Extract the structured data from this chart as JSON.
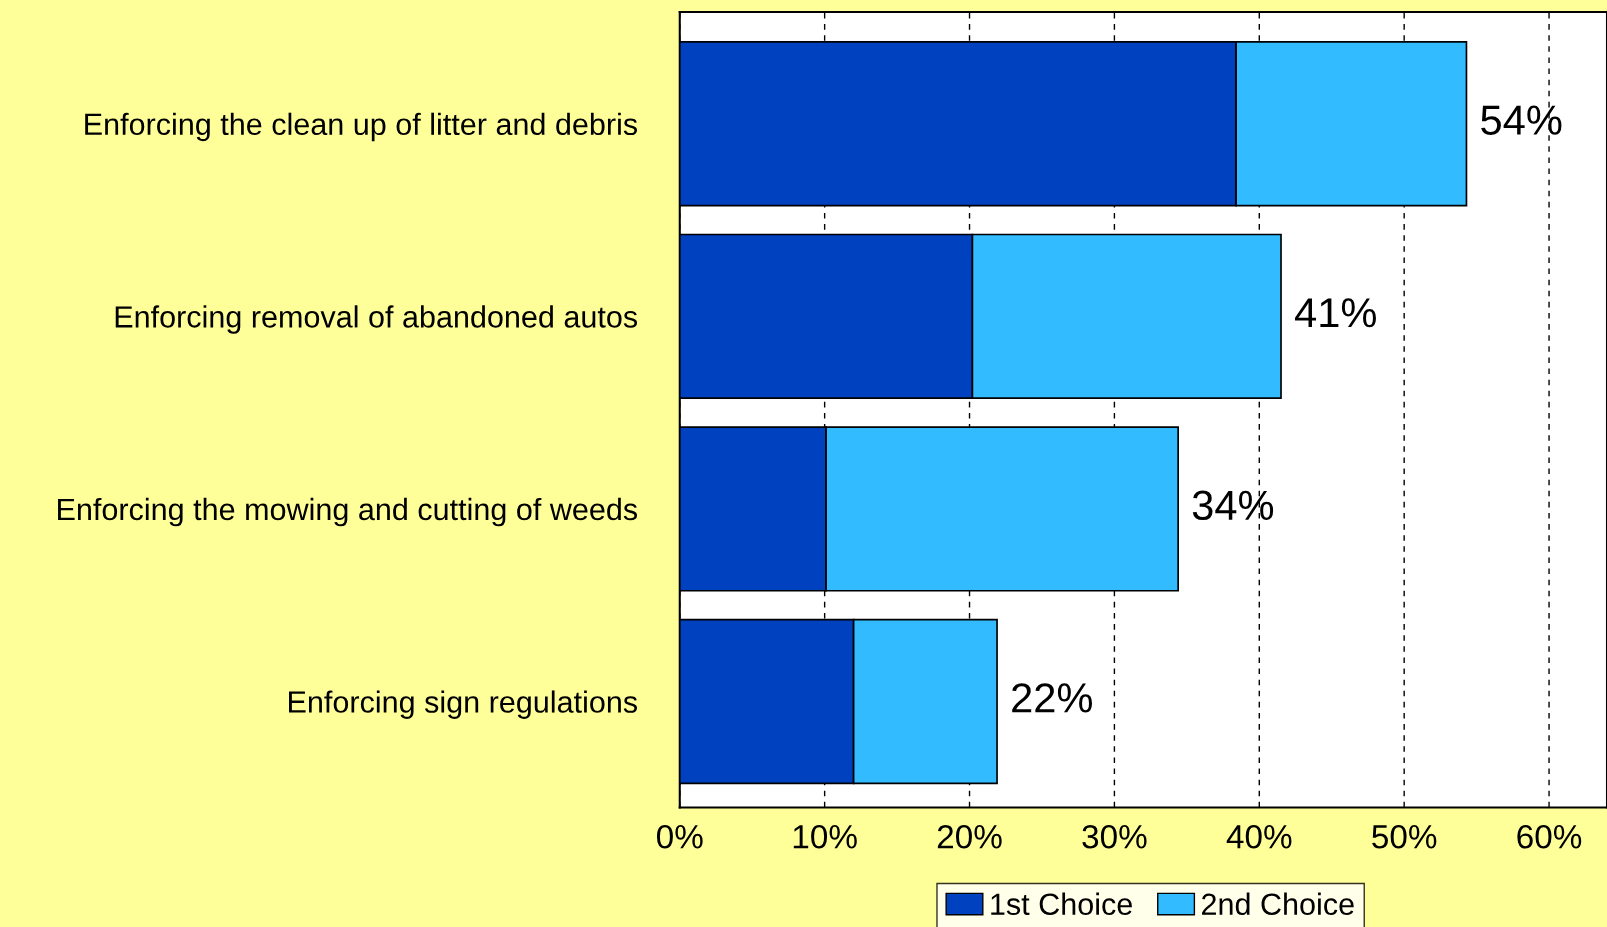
{
  "chart_data": {
    "type": "bar",
    "orientation": "horizontal",
    "stacked": true,
    "categories": [
      "Enforcing the clean up of litter and debris",
      "Enforcing removal of abandoned autos",
      "Enforcing the mowing and cutting of weeds",
      "Enforcing sign regulations"
    ],
    "series": [
      {
        "name": "1st Choice",
        "color": "#0041c0",
        "values": [
          38.4,
          20.2,
          10.1,
          12
        ]
      },
      {
        "name": "2nd Choice",
        "color": "#33bbff",
        "values": [
          15.9,
          21.3,
          24.3,
          9.9
        ]
      }
    ],
    "totals": [
      "54%",
      "41%",
      "34%",
      "22%"
    ],
    "xlim": [
      0,
      64
    ],
    "xticks": [
      {
        "value": 0,
        "label": "0%"
      },
      {
        "value": 10,
        "label": "10%"
      },
      {
        "value": 20,
        "label": "20%"
      },
      {
        "value": 30,
        "label": "30%"
      },
      {
        "value": 40,
        "label": "40%"
      },
      {
        "value": 50,
        "label": "50%"
      },
      {
        "value": 60,
        "label": "60%"
      }
    ],
    "grid": "x",
    "legend": "bottom"
  }
}
